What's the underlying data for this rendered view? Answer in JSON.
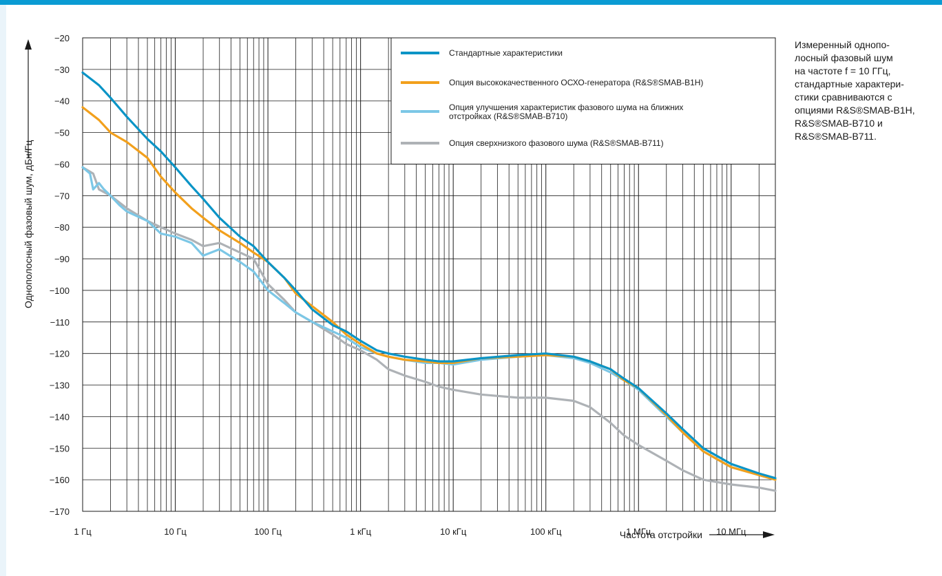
{
  "caption": "Измеренный однопо-\nлосный фазовый шум\nна частоте f = 10 ГГц,\nстандартные характери-\nстики сравниваются с\nопциями R&S®SMAB-B1H,\nR&S®SMAB-B710 и\nR&S®SMAB-B711.",
  "colors": {
    "accent_bar": "#0a9bd3",
    "standard": "#0a94c6",
    "b1h": "#f2a01c",
    "b710": "#7cc7e6",
    "b711": "#aeb2b6"
  },
  "chart_data": {
    "type": "line",
    "xscale": "log",
    "xlim": [
      1,
      30000000
    ],
    "ylim": [
      -170,
      -20
    ],
    "xlabel": "Частота отстройки",
    "ylabel": "Однополосный фазовый шум, дБн/Гц",
    "grid": true,
    "legend_position": "top-right",
    "xticks": [
      {
        "value": 1,
        "label": "1 Гц"
      },
      {
        "value": 10,
        "label": "10 Гц"
      },
      {
        "value": 100,
        "label": "100 Гц"
      },
      {
        "value": 1000,
        "label": "1 кГц"
      },
      {
        "value": 10000,
        "label": "10 кГц"
      },
      {
        "value": 100000,
        "label": "100 кГц"
      },
      {
        "value": 1000000,
        "label": "1 МГц"
      },
      {
        "value": 10000000,
        "label": "10 МГц"
      }
    ],
    "yticks": [
      "−20",
      "−30",
      "−40",
      "−50",
      "−60",
      "−70",
      "−80",
      "−90",
      "−100",
      "−110",
      "−120",
      "−130",
      "−140",
      "−150",
      "−160",
      "−170"
    ],
    "series": [
      {
        "name": "Стандартные характеристики",
        "color": "#0a94c6",
        "x": [
          1,
          1.5,
          2,
          3,
          5,
          7,
          10,
          15,
          20,
          30,
          50,
          70,
          100,
          150,
          200,
          300,
          500,
          700,
          1000,
          1500,
          2000,
          3000,
          5000,
          7000,
          10000,
          20000,
          50000,
          100000,
          200000,
          300000,
          500000,
          700000,
          1000000,
          2000000,
          3000000,
          5000000,
          10000000,
          20000000,
          30000000
        ],
        "y": [
          -31,
          -35,
          -39,
          -45,
          -52,
          -56,
          -61,
          -67,
          -71,
          -77,
          -83,
          -86,
          -91,
          -96,
          -100,
          -106,
          -111,
          -113,
          -116,
          -119,
          -120,
          -121,
          -122,
          -122.5,
          -122.5,
          -121.5,
          -120.5,
          -120,
          -121,
          -122.5,
          -125,
          -128,
          -131,
          -139,
          -144,
          -150,
          -155,
          -158,
          -159.5
        ]
      },
      {
        "name": "Опция высококачественного ОСХО-генератора (R&S®SMAB-B1H)",
        "color": "#f2a01c",
        "x": [
          1,
          1.5,
          2,
          3,
          5,
          7,
          10,
          15,
          20,
          30,
          50,
          70,
          100,
          150,
          200,
          300,
          500,
          700,
          1000,
          1500,
          2000,
          3000,
          5000,
          7000,
          10000,
          20000,
          50000,
          100000,
          200000,
          300000,
          500000,
          700000,
          1000000,
          2000000,
          3000000,
          5000000,
          10000000,
          20000000,
          30000000
        ],
        "y": [
          -42,
          -46,
          -50,
          -53,
          -58,
          -64,
          -69,
          -74,
          -77,
          -81,
          -85,
          -88,
          -91,
          -96,
          -101,
          -105,
          -110,
          -114,
          -117,
          -120,
          -121,
          -122,
          -122.5,
          -123,
          -123,
          -121.5,
          -121,
          -120.5,
          -121,
          -122.5,
          -125,
          -128.5,
          -131,
          -139.5,
          -145,
          -151,
          -156,
          -158.5,
          -160
        ]
      },
      {
        "name": "Опция улучшения характеристик фазового шума на ближних отстройках (R&S®SMAB-B710)",
        "color": "#7cc7e6",
        "x": [
          1,
          1.2,
          1.3,
          1.5,
          1.7,
          2,
          2.5,
          3,
          5,
          7,
          10,
          15,
          20,
          30,
          50,
          70,
          100,
          150,
          200,
          300,
          500,
          700,
          1000,
          1500,
          2000,
          3000,
          5000,
          7000,
          10000,
          20000,
          50000,
          100000,
          200000,
          300000,
          500000,
          700000,
          1000000,
          2000000,
          3000000,
          5000000,
          10000000,
          20000000,
          30000000
        ],
        "y": [
          -61,
          -63,
          -68,
          -66,
          -68,
          -70,
          -73,
          -75,
          -78,
          -82,
          -83,
          -85,
          -89,
          -87,
          -91,
          -94,
          -100,
          -104,
          -107,
          -110,
          -113,
          -115,
          -118,
          -120,
          -121,
          -122,
          -123,
          -123,
          -123.5,
          -122,
          -121,
          -120.5,
          -121.5,
          -123,
          -126,
          -128.5,
          -131.5,
          -140,
          -145,
          -151,
          -156,
          -158.5,
          -160
        ]
      },
      {
        "name": "Опция сверхнизкого фазового шума (R&S®SMAB-B711)",
        "color": "#aeb2b6",
        "x": [
          1,
          1.3,
          1.5,
          2,
          3,
          5,
          7,
          10,
          15,
          20,
          30,
          50,
          70,
          100,
          150,
          200,
          300,
          500,
          700,
          1000,
          1500,
          2000,
          3000,
          5000,
          7000,
          10000,
          20000,
          50000,
          100000,
          200000,
          300000,
          500000,
          700000,
          1000000,
          2000000,
          3000000,
          5000000,
          10000000,
          20000000,
          30000000
        ],
        "y": [
          -61,
          -63,
          -68,
          -70,
          -74,
          -78,
          -80,
          -82,
          -84,
          -86,
          -85,
          -88,
          -90,
          -98,
          -103,
          -107,
          -110,
          -114,
          -117,
          -119,
          -122,
          -125,
          -127,
          -129,
          -130.5,
          -131.5,
          -133,
          -134,
          -134,
          -135,
          -137,
          -142,
          -146,
          -149,
          -154,
          -157,
          -160,
          -161.5,
          -162.5,
          -163.5
        ]
      }
    ]
  }
}
